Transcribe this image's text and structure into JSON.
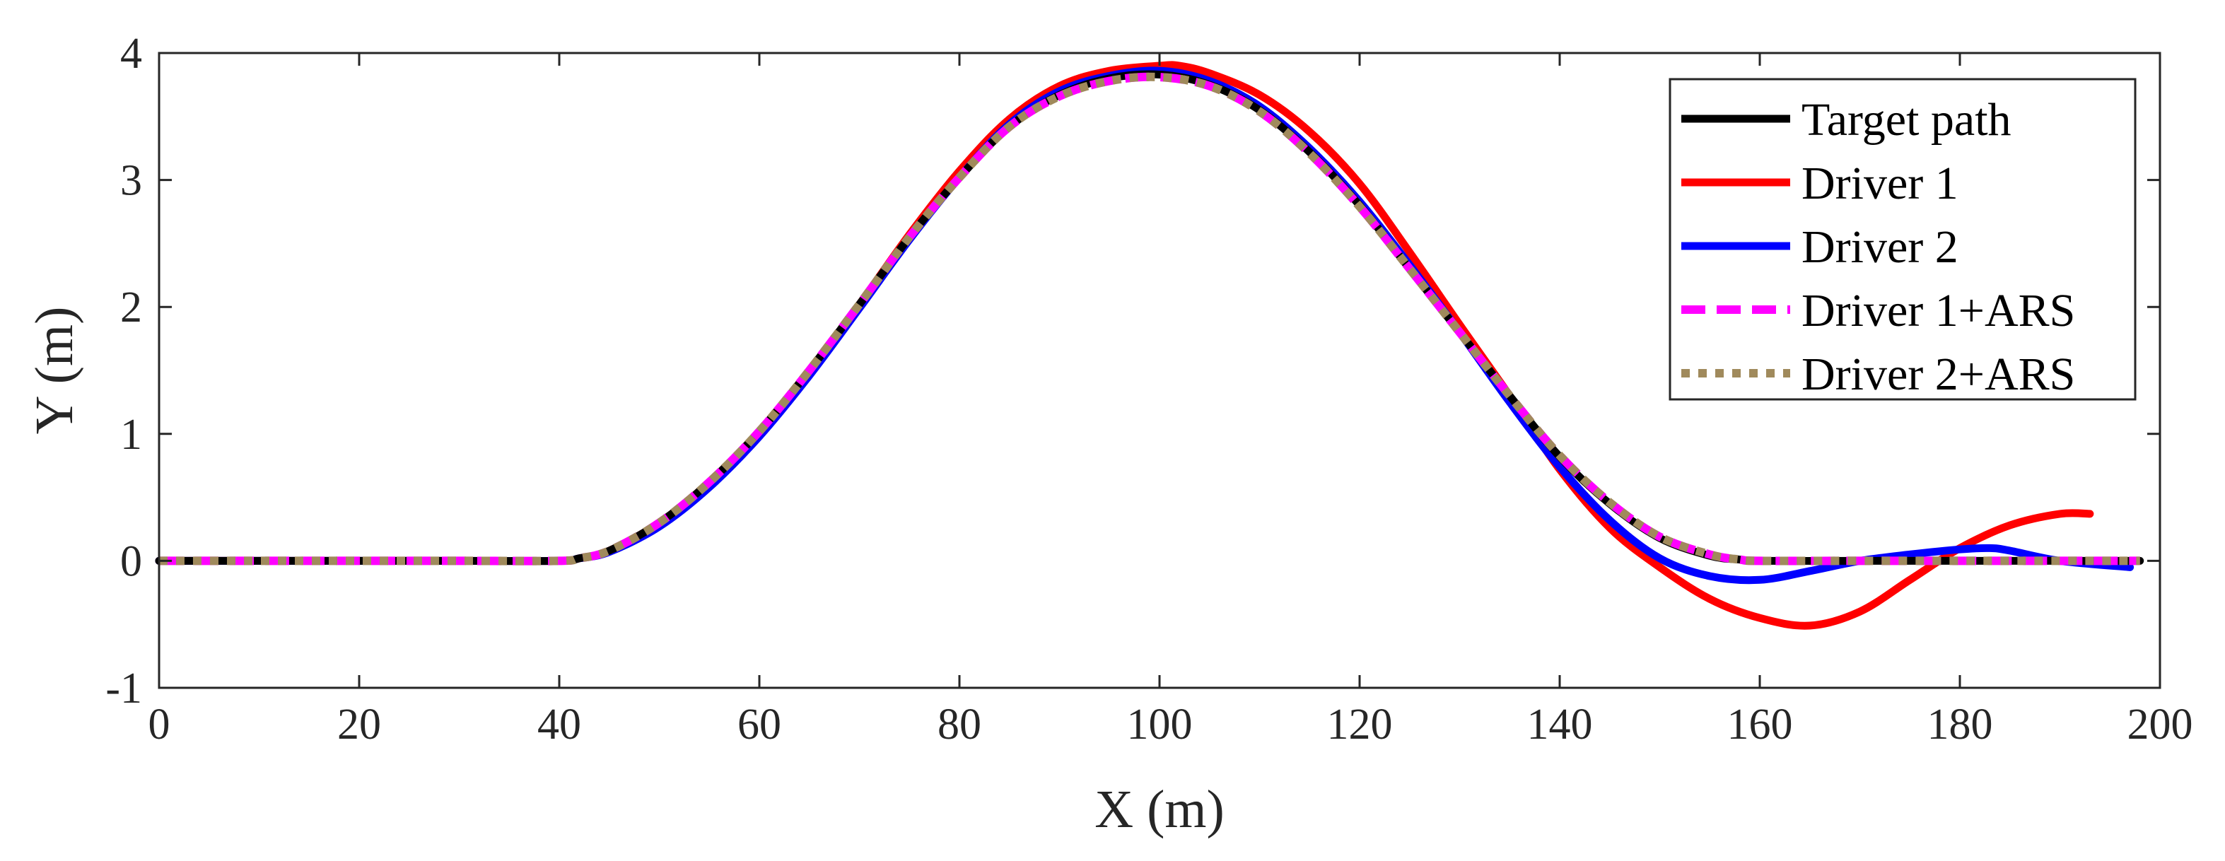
{
  "chart_data": {
    "type": "line",
    "title": "",
    "xlabel": "X (m)",
    "ylabel": "Y (m)",
    "xlim": [
      0,
      200
    ],
    "ylim": [
      -1,
      4
    ],
    "xticks": [
      0,
      20,
      40,
      60,
      80,
      100,
      120,
      140,
      160,
      180,
      200
    ],
    "yticks": [
      -1,
      0,
      1,
      2,
      3,
      4
    ],
    "xtick_labels": [
      "0",
      "20",
      "40",
      "60",
      "80",
      "100",
      "120",
      "140",
      "160",
      "180",
      "200"
    ],
    "ytick_labels": [
      "-1",
      "0",
      "1",
      "2",
      "3",
      "4"
    ],
    "grid": false,
    "legend_position": "top-right",
    "series": [
      {
        "name": "Target path",
        "color": "#000000",
        "style": "solid",
        "x": [
          0,
          10,
          20,
          30,
          40,
          42,
          45,
          50,
          55,
          60,
          65,
          70,
          75,
          80,
          85,
          90,
          95,
          100,
          105,
          110,
          115,
          120,
          125,
          130,
          135,
          140,
          145,
          150,
          155,
          158,
          160,
          170,
          180,
          190,
          198
        ],
        "y": [
          0,
          0,
          0,
          0,
          0,
          0.02,
          0.08,
          0.3,
          0.62,
          1.02,
          1.5,
          2.02,
          2.55,
          3.02,
          3.42,
          3.67,
          3.8,
          3.83,
          3.75,
          3.55,
          3.22,
          2.8,
          2.3,
          1.8,
          1.3,
          0.82,
          0.45,
          0.18,
          0.04,
          0.01,
          0,
          0,
          0,
          0,
          0
        ]
      },
      {
        "name": "Driver 1",
        "color": "#ff0000",
        "style": "solid",
        "x": [
          0,
          10,
          20,
          30,
          40,
          42,
          45,
          50,
          55,
          60,
          65,
          70,
          75,
          80,
          85,
          90,
          95,
          100,
          102,
          105,
          110,
          115,
          120,
          125,
          130,
          135,
          140,
          145,
          150,
          155,
          160,
          165,
          170,
          175,
          180,
          185,
          190,
          193
        ],
        "y": [
          0,
          0,
          0,
          0,
          0,
          0.02,
          0.08,
          0.3,
          0.62,
          1.02,
          1.5,
          2.02,
          2.57,
          3.07,
          3.48,
          3.74,
          3.86,
          3.9,
          3.9,
          3.84,
          3.67,
          3.38,
          2.97,
          2.43,
          1.86,
          1.3,
          0.72,
          0.26,
          -0.05,
          -0.3,
          -0.45,
          -0.51,
          -0.4,
          -0.15,
          0.1,
          0.28,
          0.37,
          0.37
        ]
      },
      {
        "name": "Driver 2",
        "color": "#0000ff",
        "style": "solid",
        "x": [
          0,
          10,
          20,
          30,
          40,
          42,
          45,
          50,
          55,
          60,
          65,
          70,
          75,
          80,
          85,
          90,
          95,
          100,
          105,
          110,
          115,
          120,
          125,
          130,
          135,
          140,
          145,
          150,
          155,
          160,
          165,
          170,
          175,
          180,
          183,
          185,
          190,
          197
        ],
        "y": [
          0,
          0,
          0,
          0,
          0,
          0.02,
          0.07,
          0.27,
          0.58,
          0.98,
          1.46,
          1.99,
          2.53,
          3.02,
          3.44,
          3.7,
          3.82,
          3.86,
          3.78,
          3.58,
          3.25,
          2.83,
          2.33,
          1.8,
          1.25,
          0.74,
          0.32,
          0.02,
          -0.12,
          -0.15,
          -0.08,
          0,
          0.05,
          0.09,
          0.1,
          0.08,
          0,
          -0.05
        ]
      },
      {
        "name": "Driver 1+ARS",
        "color": "#ff00ff",
        "style": "dashed",
        "x": [
          0,
          10,
          20,
          30,
          40,
          42,
          45,
          50,
          55,
          60,
          65,
          70,
          75,
          80,
          85,
          90,
          95,
          100,
          105,
          110,
          115,
          120,
          125,
          130,
          135,
          140,
          145,
          150,
          155,
          158,
          160,
          170,
          180,
          190,
          198
        ],
        "y": [
          0,
          0,
          0,
          0,
          0,
          0.02,
          0.08,
          0.3,
          0.62,
          1.02,
          1.5,
          2.02,
          2.55,
          3.02,
          3.42,
          3.66,
          3.78,
          3.81,
          3.74,
          3.54,
          3.21,
          2.79,
          2.3,
          1.8,
          1.3,
          0.83,
          0.46,
          0.19,
          0.05,
          0.01,
          0,
          0,
          0,
          0,
          0
        ]
      },
      {
        "name": "Driver 2+ARS",
        "color": "#a08a5c",
        "style": "dotted",
        "x": [
          0,
          10,
          20,
          30,
          40,
          42,
          45,
          50,
          55,
          60,
          65,
          70,
          75,
          80,
          85,
          90,
          95,
          100,
          105,
          110,
          115,
          120,
          125,
          130,
          135,
          140,
          145,
          150,
          155,
          158,
          160,
          170,
          180,
          190,
          198
        ],
        "y": [
          0,
          0,
          0,
          0,
          0,
          0.02,
          0.08,
          0.3,
          0.62,
          1.02,
          1.5,
          2.02,
          2.55,
          3.02,
          3.42,
          3.66,
          3.78,
          3.81,
          3.74,
          3.54,
          3.21,
          2.79,
          2.3,
          1.8,
          1.3,
          0.83,
          0.46,
          0.19,
          0.05,
          0.01,
          0,
          0,
          0,
          0,
          0
        ]
      }
    ]
  }
}
